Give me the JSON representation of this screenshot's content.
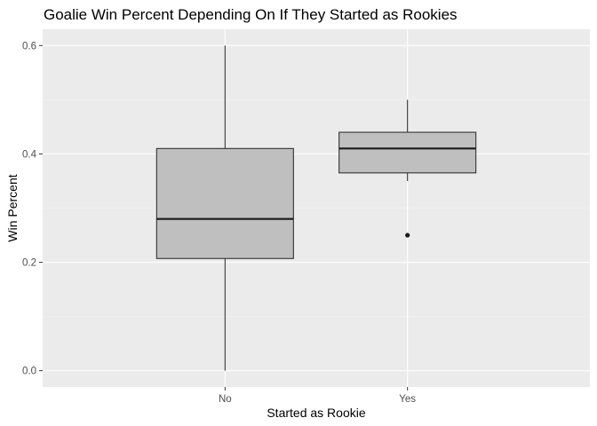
{
  "chart_data": {
    "type": "boxplot",
    "title": "Goalie Win Percent Depending On If They Started as Rookies",
    "xlabel": "Started as Rookie",
    "ylabel": "Win Percent",
    "categories": [
      "No",
      "Yes"
    ],
    "ylim": [
      -0.03,
      0.63
    ],
    "yticks": [
      0.0,
      0.2,
      0.4,
      0.6
    ],
    "ytick_labels": [
      "0.0",
      "0.2",
      "0.4",
      "0.6"
    ],
    "grid": true,
    "boxes": [
      {
        "category": "No",
        "whisker_low": 0.0,
        "q1": 0.207,
        "median": 0.28,
        "q3": 0.41,
        "whisker_high": 0.6,
        "outliers": []
      },
      {
        "category": "Yes",
        "whisker_low": 0.35,
        "q1": 0.365,
        "median": 0.41,
        "q3": 0.44,
        "whisker_high": 0.5,
        "outliers": [
          0.25
        ]
      }
    ],
    "colors": {
      "panel_background": "#ebebeb",
      "grid_major": "#ffffff",
      "grid_minor": "#f5f5f5",
      "box_fill": "#bfbfbf",
      "box_stroke": "#333333",
      "median": "#1a1a1a",
      "outlier": "#1a1a1a"
    }
  }
}
